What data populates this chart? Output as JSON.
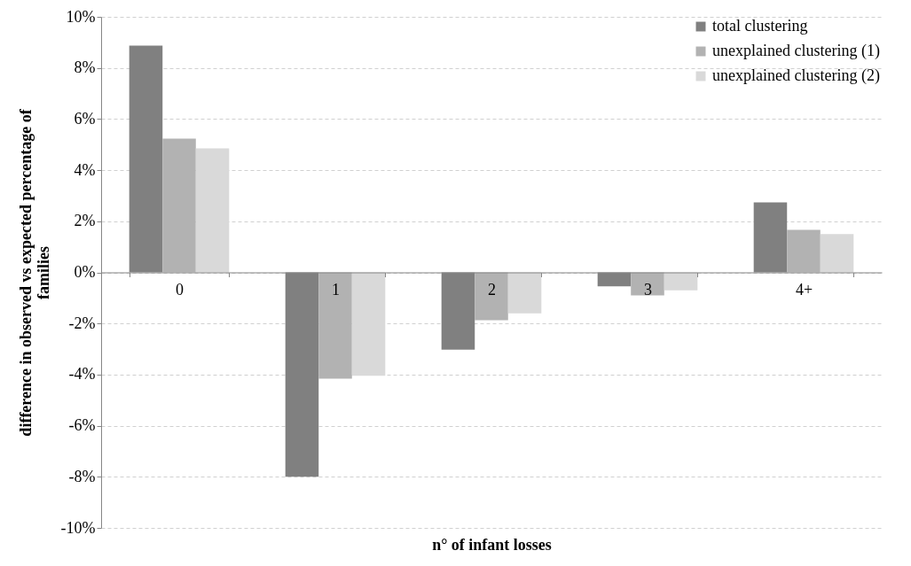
{
  "chart_data": {
    "type": "bar",
    "xlabel": "n° of infant losses",
    "ylabel": "difference in observed vs expected percentage of families",
    "categories": [
      "0",
      "1",
      "2",
      "3",
      "4+"
    ],
    "series": [
      {
        "name": "total clustering",
        "color": "#808080",
        "values": [
          8.87,
          -8.0,
          -3.02,
          -0.55,
          2.74
        ]
      },
      {
        "name": "unexplained clustering (1)",
        "color": "#b2b2b2",
        "values": [
          5.23,
          -4.16,
          -1.87,
          -0.9,
          1.66
        ]
      },
      {
        "name": "unexplained clustering (2)",
        "color": "#d9d9d9",
        "values": [
          4.85,
          -4.05,
          -1.6,
          -0.7,
          1.5
        ]
      }
    ],
    "ylim": [
      -10,
      10
    ],
    "yticks": [
      {
        "value": -10,
        "label": "-10%"
      },
      {
        "value": -8,
        "label": "-8%"
      },
      {
        "value": -6,
        "label": "-6%"
      },
      {
        "value": -4,
        "label": "-4%"
      },
      {
        "value": -2,
        "label": "-2%"
      },
      {
        "value": 0,
        "label": "0%"
      },
      {
        "value": 2,
        "label": "2%"
      },
      {
        "value": 4,
        "label": "4%"
      },
      {
        "value": 6,
        "label": "6%"
      },
      {
        "value": 8,
        "label": "8%"
      },
      {
        "value": 10,
        "label": "10%"
      }
    ],
    "grid": "y",
    "legend": "top right"
  }
}
